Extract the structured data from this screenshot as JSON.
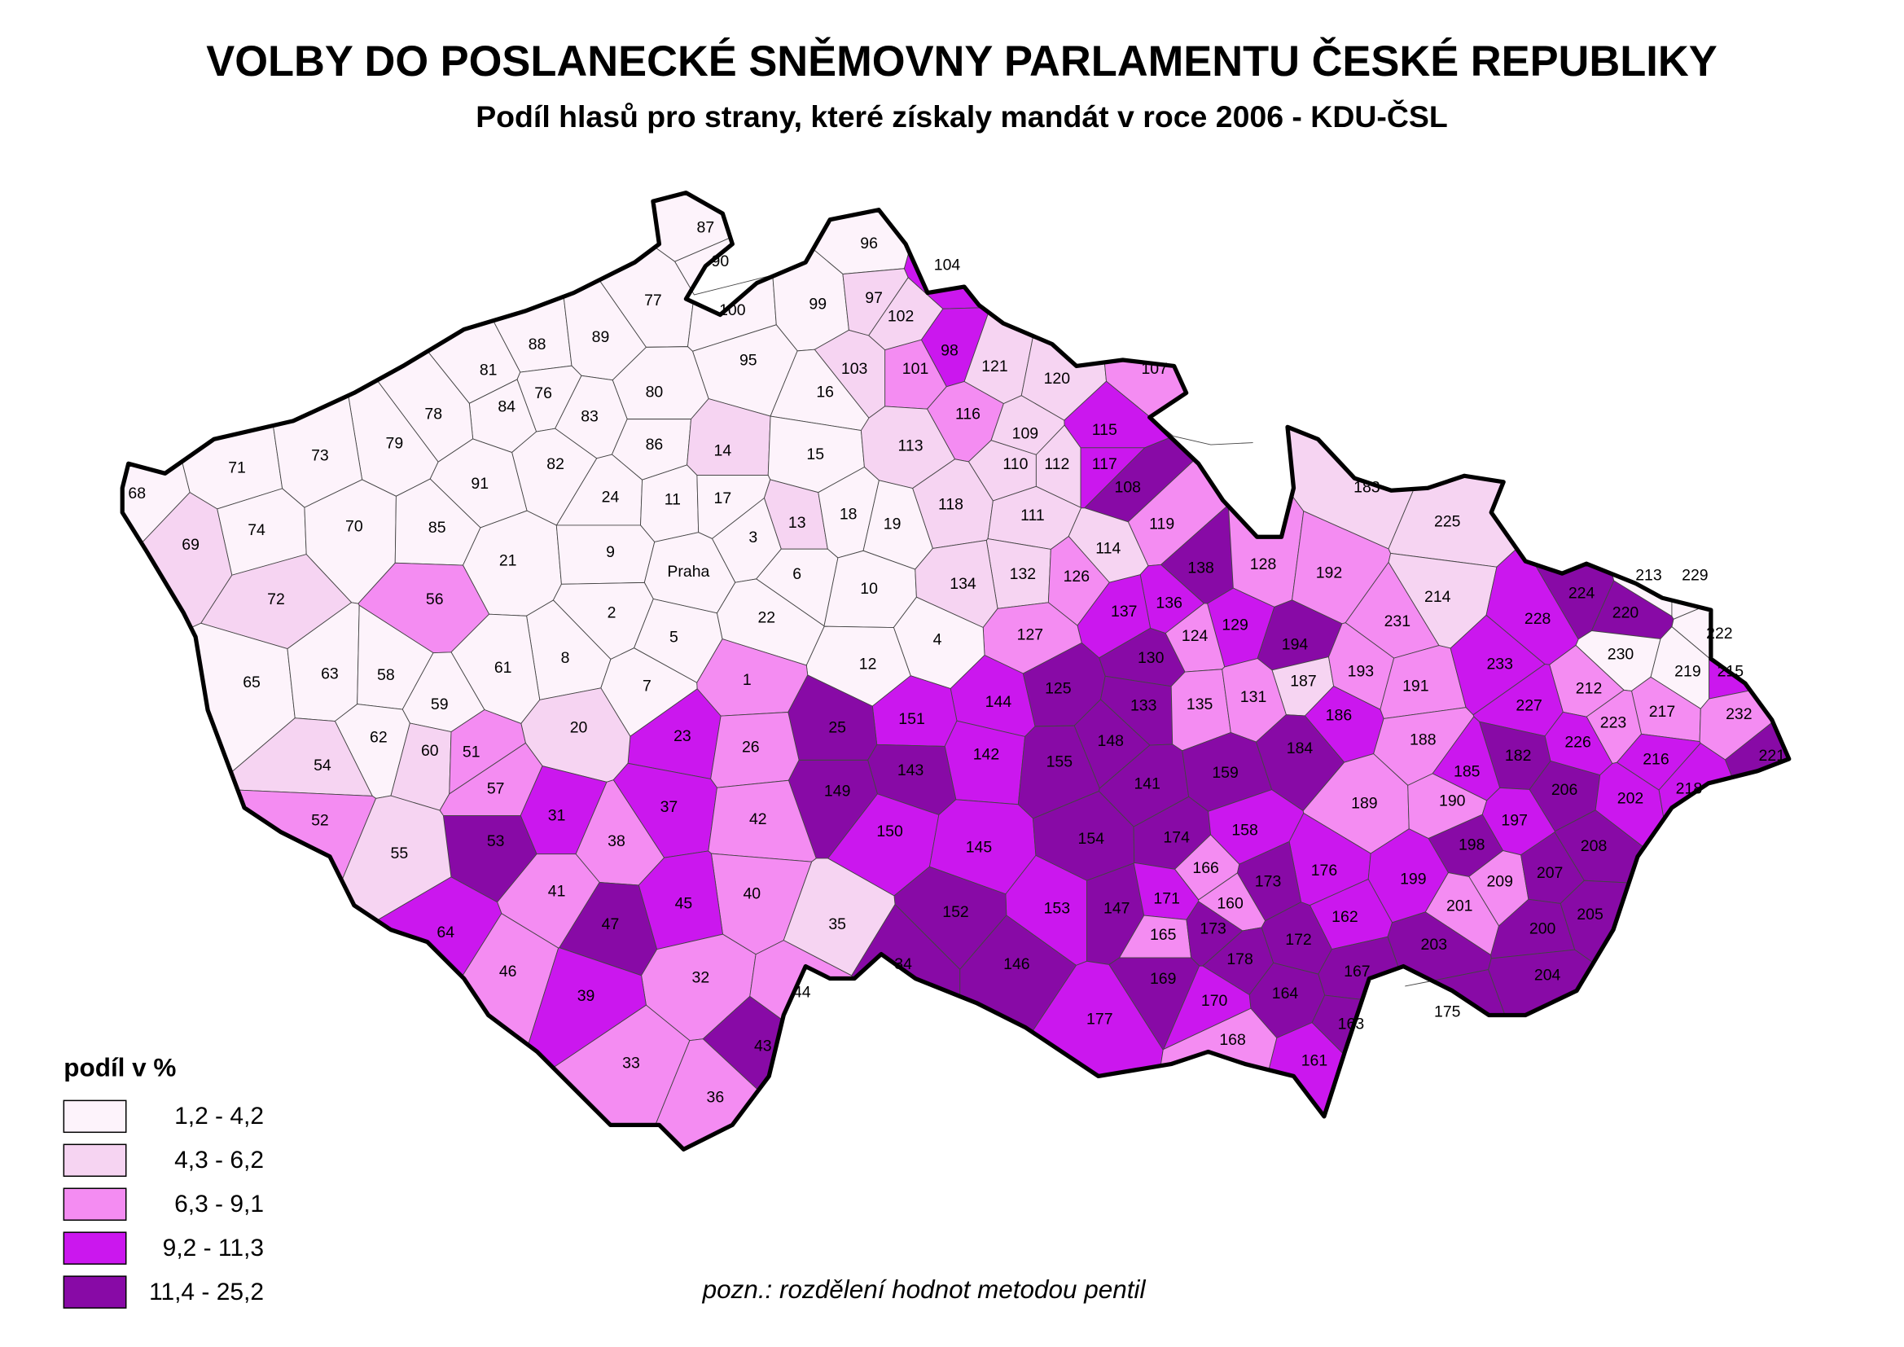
{
  "header": {
    "title": "VOLBY DO POSLANECKÉ SNĚMOVNY PARLAMENTU ČESKÉ REPUBLIKY",
    "subtitle": "Podíl hlasů pro strany, které získaly mandát v roce 2006 - KDU-ČSL"
  },
  "legend": {
    "title": "podíl v %",
    "classes": [
      {
        "label": "1,2 - 4,2",
        "color": "#fdf3fb"
      },
      {
        "label": "4,3 - 6,2",
        "color": "#f6d4f2"
      },
      {
        "label": "6,3 - 9,1",
        "color": "#f48cf2"
      },
      {
        "label": "9,2 - 11,3",
        "color": "#cb17ee"
      },
      {
        "label": "11,4 - 25,2",
        "color": "#880aa6"
      }
    ]
  },
  "districts": [
    {
      "label": "87",
      "class": 0
    },
    {
      "label": "90",
      "class": 0
    },
    {
      "label": "96",
      "class": 0
    },
    {
      "label": "77",
      "class": 0
    },
    {
      "label": "100",
      "class": 0
    },
    {
      "label": "99",
      "class": 0
    },
    {
      "label": "97",
      "class": 1
    },
    {
      "label": "102",
      "class": 1
    },
    {
      "label": "104",
      "class": 3
    },
    {
      "label": "98",
      "class": 3
    },
    {
      "label": "101",
      "class": 2
    },
    {
      "label": "103",
      "class": 1
    },
    {
      "label": "121",
      "class": 1
    },
    {
      "label": "95",
      "class": 0
    },
    {
      "label": "88",
      "class": 0
    },
    {
      "label": "89",
      "class": 0
    },
    {
      "label": "81",
      "class": 0
    },
    {
      "label": "76",
      "class": 0
    },
    {
      "label": "84",
      "class": 0
    },
    {
      "label": "80",
      "class": 0
    },
    {
      "label": "78",
      "class": 0
    },
    {
      "label": "83",
      "class": 0
    },
    {
      "label": "120",
      "class": 1
    },
    {
      "label": "107",
      "class": 2
    },
    {
      "label": "16",
      "class": 0
    },
    {
      "label": "79",
      "class": 0
    },
    {
      "label": "86",
      "class": 0
    },
    {
      "label": "82",
      "class": 0
    },
    {
      "label": "14",
      "class": 1
    },
    {
      "label": "15",
      "class": 0
    },
    {
      "label": "113",
      "class": 1
    },
    {
      "label": "116",
      "class": 2
    },
    {
      "label": "109",
      "class": 1
    },
    {
      "label": "115",
      "class": 3
    },
    {
      "label": "71",
      "class": 0
    },
    {
      "label": "73",
      "class": 0
    },
    {
      "label": "91",
      "class": 0
    },
    {
      "label": "24",
      "class": 0
    },
    {
      "label": "11",
      "class": 0
    },
    {
      "label": "17",
      "class": 0
    },
    {
      "label": "110",
      "class": 1
    },
    {
      "label": "112",
      "class": 1
    },
    {
      "label": "117",
      "class": 3
    },
    {
      "label": "118",
      "class": 1
    },
    {
      "label": "108",
      "class": 4
    },
    {
      "label": "68",
      "class": 0
    },
    {
      "label": "74",
      "class": 0
    },
    {
      "label": "70",
      "class": 0
    },
    {
      "label": "85",
      "class": 0
    },
    {
      "label": "13",
      "class": 1
    },
    {
      "label": "18",
      "class": 0
    },
    {
      "label": "19",
      "class": 0
    },
    {
      "label": "111",
      "class": 1
    },
    {
      "label": "119",
      "class": 2
    },
    {
      "label": "3",
      "class": 0
    },
    {
      "label": "69",
      "class": 1
    },
    {
      "label": "21",
      "class": 0
    },
    {
      "label": "9",
      "class": 0
    },
    {
      "label": "Praha",
      "class": 0
    },
    {
      "label": "6",
      "class": 0
    },
    {
      "label": "114",
      "class": 1
    },
    {
      "label": "138",
      "class": 4
    },
    {
      "label": "128",
      "class": 2
    },
    {
      "label": "192",
      "class": 2
    },
    {
      "label": "183",
      "class": 1
    },
    {
      "label": "225",
      "class": 1
    },
    {
      "label": "10",
      "class": 0
    },
    {
      "label": "132",
      "class": 1
    },
    {
      "label": "126",
      "class": 2
    },
    {
      "label": "134",
      "class": 1
    },
    {
      "label": "72",
      "class": 1
    },
    {
      "label": "56",
      "class": 2
    },
    {
      "label": "2",
      "class": 0
    },
    {
      "label": "5",
      "class": 0
    },
    {
      "label": "22",
      "class": 0
    },
    {
      "label": "136",
      "class": 3
    },
    {
      "label": "137",
      "class": 3
    },
    {
      "label": "129",
      "class": 3
    },
    {
      "label": "214",
      "class": 1
    },
    {
      "label": "231",
      "class": 2
    },
    {
      "label": "224",
      "class": 4
    },
    {
      "label": "220",
      "class": 4
    },
    {
      "label": "213",
      "class": 0
    },
    {
      "label": "229",
      "class": 0
    },
    {
      "label": "228",
      "class": 3
    },
    {
      "label": "194",
      "class": 4
    },
    {
      "label": "127",
      "class": 2
    },
    {
      "label": "124",
      "class": 2
    },
    {
      "label": "4",
      "class": 0
    },
    {
      "label": "12",
      "class": 0
    },
    {
      "label": "8",
      "class": 0
    },
    {
      "label": "7",
      "class": 0
    },
    {
      "label": "1",
      "class": 2
    },
    {
      "label": "65",
      "class": 0
    },
    {
      "label": "63",
      "class": 0
    },
    {
      "label": "58",
      "class": 0
    },
    {
      "label": "61",
      "class": 0
    },
    {
      "label": "130",
      "class": 4
    },
    {
      "label": "187",
      "class": 1
    },
    {
      "label": "193",
      "class": 2
    },
    {
      "label": "191",
      "class": 2
    },
    {
      "label": "233",
      "class": 3
    },
    {
      "label": "230",
      "class": 0
    },
    {
      "label": "222",
      "class": 0
    },
    {
      "label": "219",
      "class": 0
    },
    {
      "label": "215",
      "class": 3
    },
    {
      "label": "212",
      "class": 2
    },
    {
      "label": "227",
      "class": 3
    },
    {
      "label": "217",
      "class": 2
    },
    {
      "label": "232",
      "class": 2
    },
    {
      "label": "223",
      "class": 2
    },
    {
      "label": "144",
      "class": 3
    },
    {
      "label": "125",
      "class": 4
    },
    {
      "label": "133",
      "class": 4
    },
    {
      "label": "135",
      "class": 2
    },
    {
      "label": "131",
      "class": 2
    },
    {
      "label": "186",
      "class": 3
    },
    {
      "label": "188",
      "class": 2
    },
    {
      "label": "182",
      "class": 4
    },
    {
      "label": "226",
      "class": 3
    },
    {
      "label": "216",
      "class": 3
    },
    {
      "label": "221",
      "class": 4
    },
    {
      "label": "218",
      "class": 3
    },
    {
      "label": "151",
      "class": 3
    },
    {
      "label": "25",
      "class": 4
    },
    {
      "label": "59",
      "class": 0
    },
    {
      "label": "23",
      "class": 3
    },
    {
      "label": "26",
      "class": 2
    },
    {
      "label": "20",
      "class": 1
    },
    {
      "label": "62",
      "class": 0
    },
    {
      "label": "60",
      "class": 1
    },
    {
      "label": "51",
      "class": 2
    },
    {
      "label": "54",
      "class": 1
    },
    {
      "label": "57",
      "class": 2
    },
    {
      "label": "148",
      "class": 4
    },
    {
      "label": "142",
      "class": 3
    },
    {
      "label": "143",
      "class": 4
    },
    {
      "label": "155",
      "class": 4
    },
    {
      "label": "141",
      "class": 4
    },
    {
      "label": "159",
      "class": 4
    },
    {
      "label": "184",
      "class": 4
    },
    {
      "label": "185",
      "class": 3
    },
    {
      "label": "206",
      "class": 4
    },
    {
      "label": "202",
      "class": 3
    },
    {
      "label": "149",
      "class": 4
    },
    {
      "label": "150",
      "class": 3
    },
    {
      "label": "145",
      "class": 3
    },
    {
      "label": "154",
      "class": 4
    },
    {
      "label": "174",
      "class": 4
    },
    {
      "label": "158",
      "class": 3
    },
    {
      "label": "189",
      "class": 2
    },
    {
      "label": "190",
      "class": 2
    },
    {
      "label": "197",
      "class": 3
    },
    {
      "label": "198",
      "class": 4
    },
    {
      "label": "208",
      "class": 4
    },
    {
      "label": "31",
      "class": 3
    },
    {
      "label": "37",
      "class": 3
    },
    {
      "label": "42",
      "class": 2
    },
    {
      "label": "52",
      "class": 2
    },
    {
      "label": "38",
      "class": 2
    },
    {
      "label": "53",
      "class": 4
    },
    {
      "label": "55",
      "class": 1
    },
    {
      "label": "176",
      "class": 3
    },
    {
      "label": "166",
      "class": 2
    },
    {
      "label": "173",
      "class": 4
    },
    {
      "label": "199",
      "class": 3
    },
    {
      "label": "209",
      "class": 2
    },
    {
      "label": "207",
      "class": 4
    },
    {
      "label": "41",
      "class": 2
    },
    {
      "label": "40",
      "class": 2
    },
    {
      "label": "45",
      "class": 3
    },
    {
      "label": "153",
      "class": 3
    },
    {
      "label": "147",
      "class": 4
    },
    {
      "label": "152",
      "class": 4
    },
    {
      "label": "171",
      "class": 3
    },
    {
      "label": "160",
      "class": 2
    },
    {
      "label": "162",
      "class": 3
    },
    {
      "label": "201",
      "class": 2
    },
    {
      "label": "205",
      "class": 4
    },
    {
      "label": "35",
      "class": 1
    },
    {
      "label": "47",
      "class": 4
    },
    {
      "label": "64",
      "class": 3
    },
    {
      "label": "165",
      "class": 2
    },
    {
      "label": "173",
      "class": 4
    },
    {
      "label": "172",
      "class": 4
    },
    {
      "label": "200",
      "class": 4
    },
    {
      "label": "203",
      "class": 4
    },
    {
      "label": "178",
      "class": 4
    },
    {
      "label": "34",
      "class": 4
    },
    {
      "label": "146",
      "class": 4
    },
    {
      "label": "167",
      "class": 4
    },
    {
      "label": "46",
      "class": 2
    },
    {
      "label": "32",
      "class": 2
    },
    {
      "label": "169",
      "class": 4
    },
    {
      "label": "204",
      "class": 4
    },
    {
      "label": "39",
      "class": 3
    },
    {
      "label": "44",
      "class": 2
    },
    {
      "label": "164",
      "class": 4
    },
    {
      "label": "170",
      "class": 3
    },
    {
      "label": "177",
      "class": 3
    },
    {
      "label": "163",
      "class": 4
    },
    {
      "label": "175",
      "class": 4
    },
    {
      "label": "43",
      "class": 4
    },
    {
      "label": "168",
      "class": 2
    },
    {
      "label": "161",
      "class": 3
    },
    {
      "label": "33",
      "class": 2
    },
    {
      "label": "36",
      "class": 2
    }
  ],
  "note": "pozn.: rozdělení hodnot metodou pentil"
}
